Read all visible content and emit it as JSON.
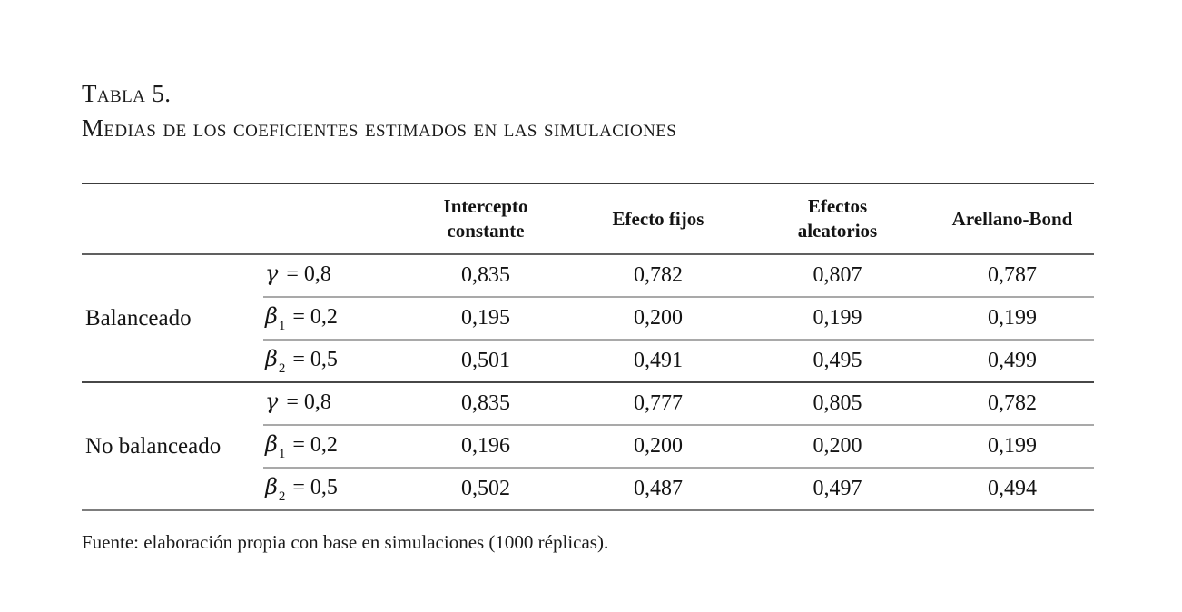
{
  "title": {
    "line1": "Tabla 5.",
    "line2": "Medias de los coeficientes estimados en las simulaciones"
  },
  "table": {
    "column_headers": [
      "Intercepto constante",
      "Efecto fijos",
      "Efectos aleatorios",
      "Arellano-Bond"
    ],
    "groups": [
      {
        "label": "Balanceado",
        "rows": [
          {
            "param_symbol": "γ",
            "param_sub": "",
            "param_value": "= 0,8",
            "values": [
              "0,835",
              "0,782",
              "0,807",
              "0,787"
            ]
          },
          {
            "param_symbol": "β",
            "param_sub": "1",
            "param_value": "= 0,2",
            "values": [
              "0,195",
              "0,200",
              "0,199",
              "0,199"
            ]
          },
          {
            "param_symbol": "β",
            "param_sub": "2",
            "param_value": "= 0,5",
            "values": [
              "0,501",
              "0,491",
              "0,495",
              "0,499"
            ]
          }
        ]
      },
      {
        "label": "No balanceado",
        "rows": [
          {
            "param_symbol": "γ",
            "param_sub": "",
            "param_value": "= 0,8",
            "values": [
              "0,835",
              "0,777",
              "0,805",
              "0,782"
            ]
          },
          {
            "param_symbol": "β",
            "param_sub": "1",
            "param_value": "= 0,2",
            "values": [
              "0,196",
              "0,200",
              "0,200",
              "0,199"
            ]
          },
          {
            "param_symbol": "β",
            "param_sub": "2",
            "param_value": "= 0,5",
            "values": [
              "0,502",
              "0,487",
              "0,497",
              "0,494"
            ]
          }
        ]
      }
    ]
  },
  "footer": {
    "source": "Fuente: elaboración propia con base en simulaciones (1000 réplicas)."
  }
}
